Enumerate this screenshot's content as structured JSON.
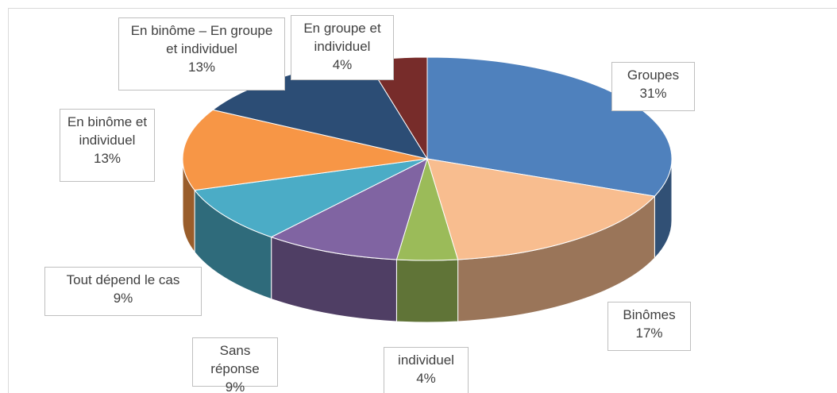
{
  "chart_data": {
    "type": "pie",
    "categories": [
      "Groupes",
      "Binômes",
      "individuel",
      "Sans réponse",
      "Tout dépend le cas",
      "En binôme et individuel",
      "En binôme – En groupe et individuel",
      "En groupe et individuel"
    ],
    "values": [
      31,
      17,
      4,
      9,
      9,
      13,
      13,
      4
    ],
    "value_labels": [
      "31%",
      "17%",
      "4%",
      "9%",
      "9%",
      "13%",
      "13%",
      "4%"
    ],
    "colors": [
      "#4f81bd",
      "#f8bd8f",
      "#9bbb59",
      "#8064a2",
      "#4bacc6",
      "#f79646",
      "#2c4d75",
      "#772c2a"
    ]
  }
}
